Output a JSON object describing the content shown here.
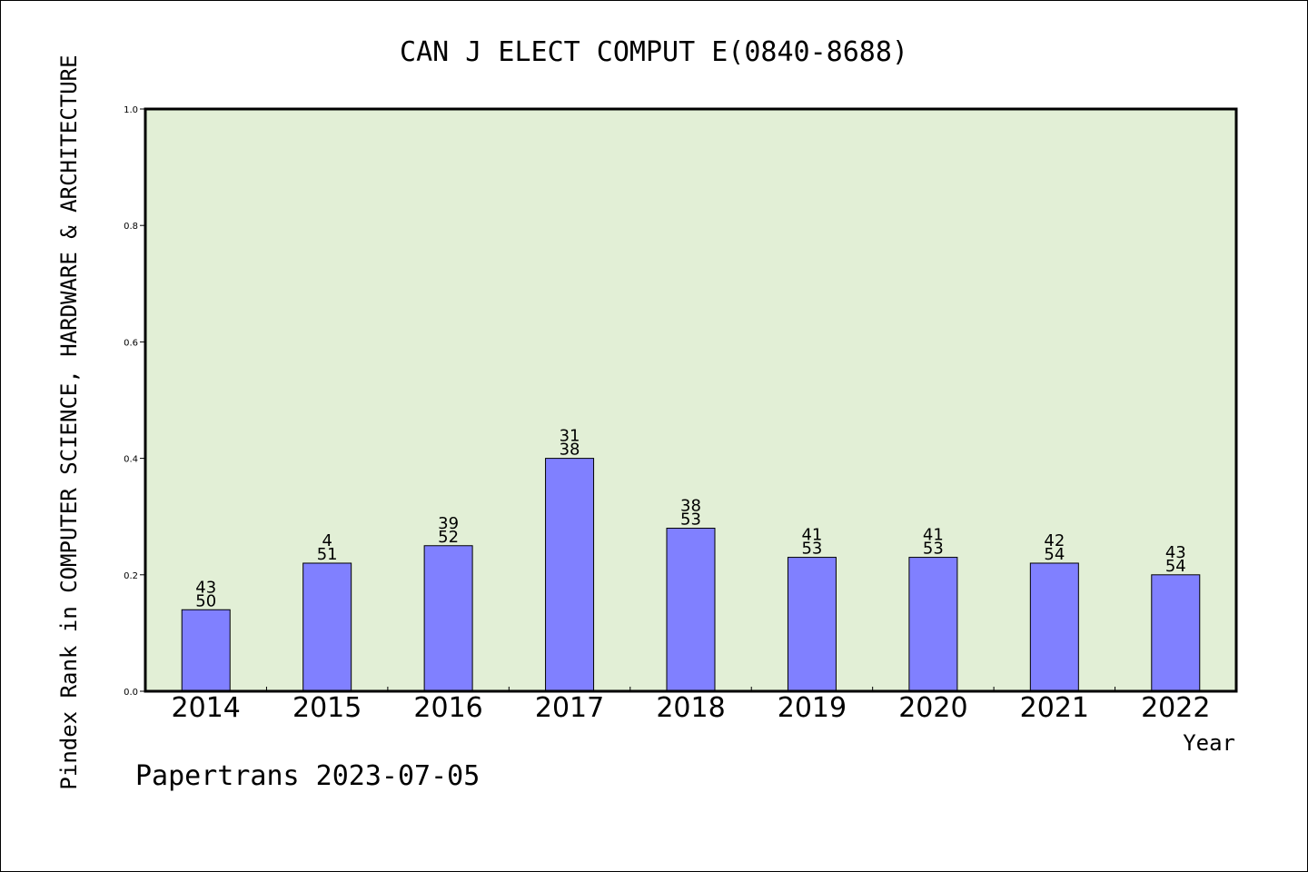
{
  "chart_data": {
    "type": "bar",
    "title": "CAN J ELECT COMPUT E(0840-8688)",
    "xlabel": "Year",
    "ylabel": "Pindex Rank in COMPUTER SCIENCE, HARDWARE & ARCHITECTURE",
    "footer": "Papertrans 2023-07-05",
    "categories": [
      "2014",
      "2015",
      "2016",
      "2017",
      "2018",
      "2019",
      "2020",
      "2021",
      "2022"
    ],
    "values": [
      0.14,
      0.22,
      0.25,
      0.4,
      0.28,
      0.23,
      0.23,
      0.22,
      0.2
    ],
    "labels_top": [
      "43",
      "4",
      "39",
      "31",
      "38",
      "41",
      "41",
      "42",
      "43"
    ],
    "labels_bottom": [
      "50",
      "51",
      "52",
      "38",
      "53",
      "53",
      "53",
      "54",
      "54"
    ],
    "ylim": [
      0,
      1.0
    ],
    "yticks": [
      "0.0",
      "0.2",
      "0.4",
      "0.6",
      "0.8",
      "1.0"
    ],
    "grid": false,
    "colors": {
      "plot_bg": "#e2efd6",
      "bar": "#8080ff",
      "frame": "#000000"
    }
  }
}
